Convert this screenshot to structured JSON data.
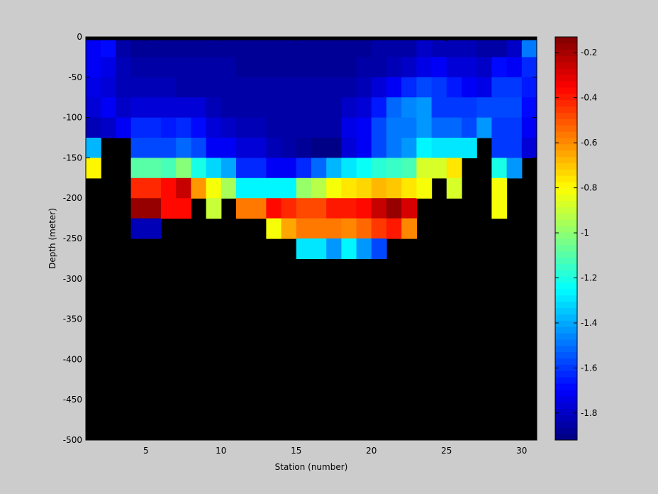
{
  "chart_data": {
    "type": "heatmap",
    "xlabel": "Station (number)",
    "ylabel": "Depth (meter)",
    "xlim": [
      1,
      31
    ],
    "ylim": [
      -500,
      0
    ],
    "x_ticks": [
      5,
      10,
      15,
      20,
      25,
      30
    ],
    "y_ticks": [
      0,
      -50,
      -100,
      -150,
      -200,
      -250,
      -300,
      -350,
      -400,
      -450,
      -500
    ],
    "colorbar": {
      "range": [
        -1.92,
        -0.13
      ],
      "ticks": [
        -0.2,
        -0.4,
        -0.6,
        -0.8,
        -1,
        -1.2,
        -1.4,
        -1.6,
        -1.8
      ],
      "colormap": "jet",
      "levels": 64
    },
    "background_color": "#000000",
    "column_groups": [
      {
        "stations": [
          1,
          2
        ],
        "values": [
          -1.7,
          -1.72,
          -1.75,
          -1.78,
          -1.82,
          -1.38,
          -0.8
        ]
      },
      {
        "stations": [
          2,
          3
        ],
        "values": [
          -1.68,
          -1.74,
          -1.77,
          -1.72,
          -1.8
        ]
      },
      {
        "stations": [
          3,
          4
        ],
        "values": [
          -1.85,
          -1.83,
          -1.82,
          -1.8,
          -1.72
        ]
      },
      {
        "stations": [
          4,
          6
        ],
        "values": [
          -1.88,
          -1.86,
          -1.82,
          -1.76,
          -1.62,
          -1.56,
          -1.1,
          -0.42,
          -0.18,
          -1.82
        ]
      },
      {
        "stations": [
          6,
          7
        ],
        "values": [
          -1.88,
          -1.86,
          -1.82,
          -1.78,
          -1.66,
          -1.58,
          -1.12,
          -0.36,
          -0.38
        ]
      },
      {
        "stations": [
          7,
          8
        ],
        "values": [
          -1.88,
          -1.86,
          -1.84,
          -1.76,
          -1.62,
          -1.52,
          -1.0,
          -0.26,
          -0.36
        ]
      },
      {
        "stations": [
          8,
          9
        ],
        "values": [
          -1.88,
          -1.86,
          -1.84,
          -1.77,
          -1.68,
          -1.58,
          -1.2,
          -0.62
        ]
      },
      {
        "stations": [
          9,
          10
        ],
        "values": [
          -1.88,
          -1.86,
          -1.84,
          -1.82,
          -1.76,
          -1.7,
          -1.32,
          -0.82,
          -0.9
        ]
      },
      {
        "stations": [
          10,
          11
        ],
        "values": [
          -1.88,
          -1.86,
          -1.84,
          -1.84,
          -1.8,
          -1.7,
          -1.4,
          -0.95
        ]
      },
      {
        "stations": [
          11,
          13
        ],
        "values": [
          -1.88,
          -1.87,
          -1.85,
          -1.84,
          -1.82,
          -1.78,
          -1.62,
          -1.25,
          -0.56
        ]
      },
      {
        "stations": [
          13,
          14
        ],
        "values": [
          -1.88,
          -1.87,
          -1.86,
          -1.86,
          -1.84,
          -1.82,
          -1.72,
          -1.25,
          -0.38,
          -0.82
        ]
      },
      {
        "stations": [
          14,
          15
        ],
        "values": [
          -1.88,
          -1.87,
          -1.86,
          -1.86,
          -1.86,
          -1.84,
          -1.72,
          -1.25,
          -0.42,
          -0.66
        ]
      },
      {
        "stations": [
          15,
          16
        ],
        "values": [
          -1.88,
          -1.87,
          -1.86,
          -1.86,
          -1.86,
          -1.88,
          -1.62,
          -0.98,
          -0.48,
          -0.56,
          -1.28
        ]
      },
      {
        "stations": [
          16,
          17
        ],
        "values": [
          -1.88,
          -1.87,
          -1.86,
          -1.86,
          -1.86,
          -1.9,
          -1.52,
          -0.94,
          -0.48,
          -0.56,
          -1.3
        ]
      },
      {
        "stations": [
          17,
          18
        ],
        "values": [
          -1.88,
          -1.87,
          -1.86,
          -1.86,
          -1.86,
          -1.9,
          -1.38,
          -0.82,
          -0.4,
          -0.56,
          -1.42
        ]
      },
      {
        "stations": [
          18,
          19
        ],
        "values": [
          -1.88,
          -1.87,
          -1.86,
          -1.8,
          -1.74,
          -1.76,
          -1.3,
          -0.76,
          -0.4,
          -0.58,
          -1.26
        ]
      },
      {
        "stations": [
          19,
          20
        ],
        "values": [
          -1.88,
          -1.86,
          -1.82,
          -1.76,
          -1.7,
          -1.72,
          -1.24,
          -0.72,
          -0.36,
          -0.54,
          -1.44
        ]
      },
      {
        "stations": [
          20,
          21
        ],
        "values": [
          -1.86,
          -1.84,
          -1.78,
          -1.66,
          -1.56,
          -1.58,
          -1.18,
          -0.68,
          -0.26,
          -0.46,
          -1.56
        ]
      },
      {
        "stations": [
          21,
          22
        ],
        "values": [
          -1.86,
          -1.82,
          -1.72,
          -1.52,
          -1.48,
          -1.5,
          -1.14,
          -0.7,
          -0.16,
          -0.4
        ]
      },
      {
        "stations": [
          22,
          23
        ],
        "values": [
          -1.84,
          -1.8,
          -1.64,
          -1.46,
          -1.48,
          -1.42,
          -1.12,
          -0.76,
          -0.28,
          -0.58
        ]
      },
      {
        "stations": [
          23,
          24
        ],
        "values": [
          -1.8,
          -1.74,
          -1.58,
          -1.44,
          -1.44,
          -1.26,
          -0.86,
          -0.82
        ]
      },
      {
        "stations": [
          24,
          25
        ],
        "values": [
          -1.82,
          -1.7,
          -1.6,
          -1.6,
          -1.52,
          -1.3,
          -0.86
        ]
      },
      {
        "stations": [
          25,
          26
        ],
        "values": [
          -1.82,
          -1.76,
          -1.66,
          -1.6,
          -1.52,
          -1.3,
          -0.76,
          -0.86
        ]
      },
      {
        "stations": [
          26,
          27
        ],
        "values": [
          -1.82,
          -1.78,
          -1.7,
          -1.6,
          -1.56,
          -1.3
        ]
      },
      {
        "stations": [
          27,
          28
        ],
        "values": [
          -1.84,
          -1.8,
          -1.74,
          -1.58,
          -1.44
        ]
      },
      {
        "stations": [
          28,
          29
        ],
        "values": [
          -1.84,
          -1.68,
          -1.6,
          -1.58,
          -1.6,
          -1.6,
          -1.2,
          -0.82,
          -0.82
        ]
      },
      {
        "stations": [
          29,
          30
        ],
        "values": [
          -1.8,
          -1.7,
          -1.6,
          -1.58,
          -1.6,
          -1.6,
          -1.42
        ]
      },
      {
        "stations": [
          30,
          31
        ],
        "values": [
          -1.5,
          -1.62,
          -1.66,
          -1.68,
          -1.72,
          -1.76
        ]
      }
    ]
  }
}
